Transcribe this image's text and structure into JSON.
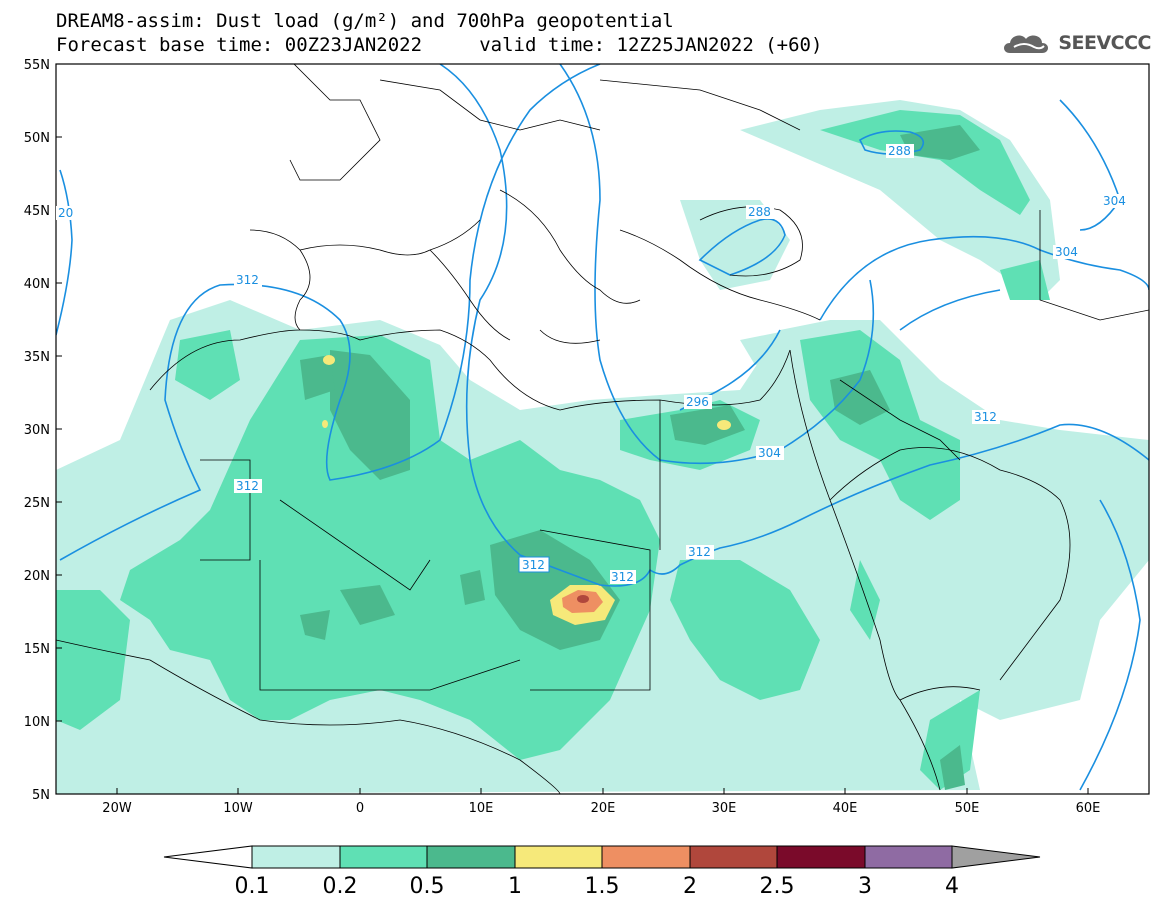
{
  "header": {
    "title_line1": "DREAM8-assim: Dust load (g/m²) and 700hPa geopotential",
    "title_line2": "Forecast base time: 00Z23JAN2022     valid time: 12Z25JAN2022 (+60)",
    "logo_text": "SEEVCCC"
  },
  "map": {
    "lon_range": [
      -25,
      65
    ],
    "lat_range": [
      5,
      55
    ],
    "lat_ticks": [
      "55N",
      "50N",
      "45N",
      "40N",
      "35N",
      "30N",
      "25N",
      "20N",
      "15N",
      "10N",
      "5N"
    ],
    "lon_ticks": [
      "20W",
      "10W",
      "0",
      "10E",
      "20E",
      "30E",
      "40E",
      "50E",
      "60E"
    ],
    "contour_labels": [
      "20",
      "312",
      "312",
      "312",
      "288",
      "288",
      "296",
      "304",
      "304",
      "312",
      "304",
      "312",
      "312"
    ],
    "colors": {
      "level_0_1": "#bfefe5",
      "level_0_2": "#5fe0b4",
      "level_0_5": "#4bb98d",
      "level_1": "#f6e97a",
      "level_1_5": "#ee8f62",
      "level_2": "#b0473c",
      "contour": "#1a8fe0"
    }
  },
  "colorbar": {
    "labels": [
      "0.1",
      "0.2",
      "0.5",
      "1",
      "1.5",
      "2",
      "2.5",
      "3",
      "4"
    ],
    "colors": [
      "#ffffff",
      "#bfefe5",
      "#5fe0b4",
      "#4bb98d",
      "#f6e97a",
      "#ee8f62",
      "#b0473c",
      "#7a0a2a",
      "#8f6ba3",
      "#a0a0a0"
    ]
  }
}
